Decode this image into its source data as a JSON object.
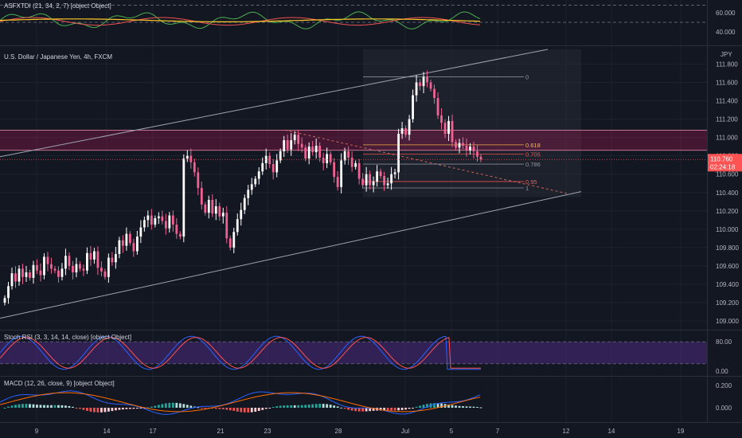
{
  "colors": {
    "background": "#131722",
    "grid": "#1e222d",
    "up": "#ffffff",
    "down": "#f06292",
    "channel": "#9ea3b0",
    "zone": "#c2185b",
    "rsi_k": "#2962ff",
    "rsi_d": "#ff5252",
    "rsi_band": "#4a2a80",
    "macd_line": "#2962ff",
    "macd_signal": "#ff6d00",
    "hist_up": "#26a69a",
    "hist_up_light": "#b2dfdb",
    "hist_down": "#ef5350",
    "hist_down_light": "#ffcdd2",
    "price_tag": "#ff5252"
  },
  "indicators": {
    "top": {
      "label": "ASFXTDI (21, 34, 2, 7) [object Object]",
      "ticks": [
        "60.000",
        "40.000"
      ]
    },
    "stoch": {
      "label": "Stoch RSI (3, 3, 14, 14, close) [object Object]",
      "ticks": [
        "80.00",
        "0.00"
      ]
    },
    "macd": {
      "label": "MACD (12, 26, close, 9) [object Object]",
      "ticks": [
        "0.200",
        "0.000"
      ]
    }
  },
  "chart_data": {
    "type": "candlestick",
    "title": "U.S. Dollar / Japanese Yen, 4h, FXCM",
    "currency": "JPY",
    "ylim": [
      108.94,
      111.96
    ],
    "y_ticks": [
      "111.800",
      "111.600",
      "111.400",
      "111.200",
      "111.000",
      "110.800",
      "110.600",
      "110.400",
      "110.200",
      "110.000",
      "109.800",
      "109.600",
      "109.400",
      "109.200",
      "109.000"
    ],
    "x_ticks": [
      "9",
      "14",
      "17",
      "21",
      "23",
      "28",
      "Jul",
      "5",
      "7",
      "12",
      "14",
      "19"
    ],
    "last_price": "110.760",
    "countdown": "02:24:18",
    "fib_levels": [
      {
        "label": "0",
        "value": 111.66
      },
      {
        "label": "0.618",
        "value": 110.92
      },
      {
        "label": "0.705",
        "value": 110.82
      },
      {
        "label": "0.786",
        "value": 110.71
      },
      {
        "label": "0.95",
        "value": 110.52
      },
      {
        "label": "1",
        "value": 110.45
      }
    ],
    "zone": {
      "low": 110.86,
      "high": 111.08
    },
    "closes": [
      109.25,
      109.38,
      109.52,
      109.43,
      109.57,
      109.48,
      109.53,
      109.47,
      109.61,
      109.55,
      109.5,
      109.7,
      109.62,
      109.57,
      109.55,
      109.48,
      109.57,
      109.71,
      109.6,
      109.53,
      109.62,
      109.57,
      109.55,
      109.74,
      109.67,
      109.76,
      109.58,
      109.54,
      109.48,
      109.69,
      109.64,
      109.73,
      109.88,
      109.82,
      109.95,
      109.85,
      109.76,
      109.92,
      110.02,
      110.1,
      110.15,
      110.05,
      110.12,
      110.14,
      110.09,
      110.01,
      110.15,
      110.05,
      109.95,
      109.92,
      110.77,
      110.8,
      110.73,
      110.62,
      110.45,
      110.27,
      110.18,
      110.32,
      110.17,
      110.25,
      110.14,
      110.18,
      109.9,
      109.8,
      109.97,
      110.11,
      110.21,
      110.34,
      110.43,
      110.49,
      110.55,
      110.63,
      110.72,
      110.8,
      110.71,
      110.62,
      110.75,
      110.85,
      110.97,
      110.87,
      110.97,
      111.03,
      110.93,
      110.89,
      110.77,
      110.9,
      110.84,
      110.91,
      110.78,
      110.72,
      110.82,
      110.73,
      110.57,
      110.46,
      110.75,
      110.85,
      110.78,
      110.68,
      110.72,
      110.55,
      110.48,
      110.6,
      110.48,
      110.52,
      110.63,
      110.58,
      110.48,
      110.5,
      110.6,
      110.62,
      111.04,
      111.1,
      111.03,
      111.2,
      111.46,
      111.6,
      111.56,
      111.66,
      111.6,
      111.53,
      111.43,
      111.24,
      111.16,
      111.04,
      111.18,
      110.95,
      110.89,
      110.94,
      110.91,
      110.86,
      110.9,
      110.85,
      110.79,
      110.76
    ]
  }
}
